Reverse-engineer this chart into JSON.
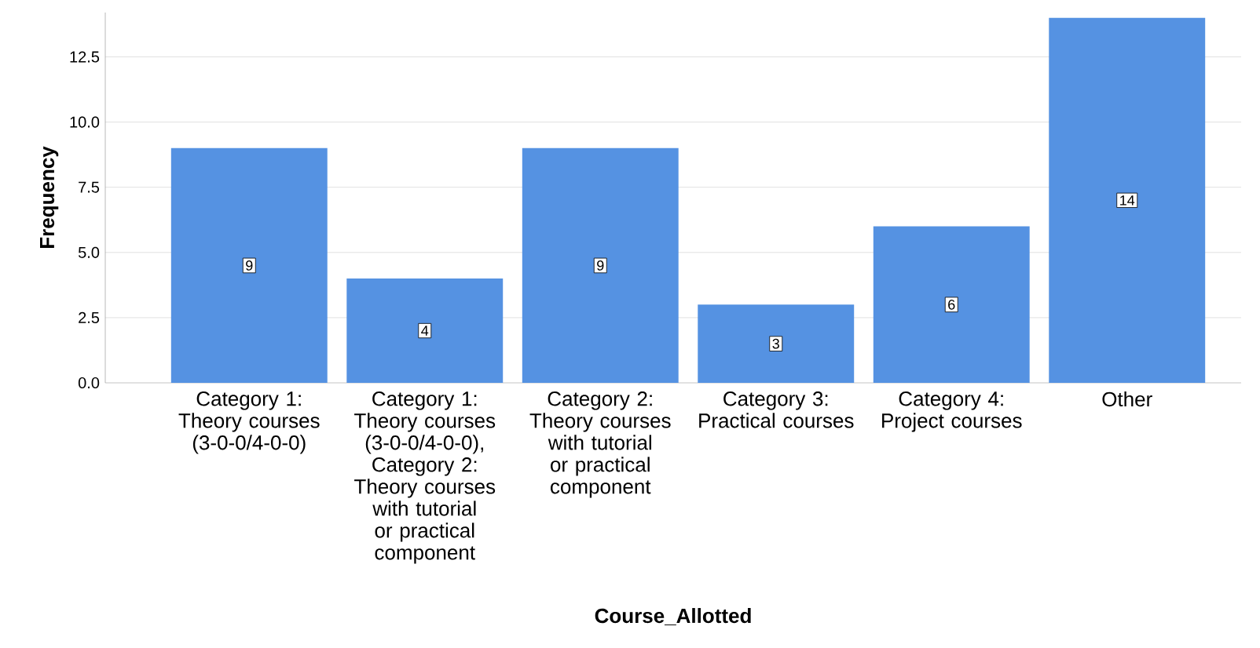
{
  "chart_data": {
    "type": "bar",
    "xlabel": "Course_Allotted",
    "ylabel": "Frequency",
    "categories": [
      "Category 1: Theory courses (3-0-0/4-0-0)",
      "Category 1: Theory courses (3-0-0/4-0-0), Category 2: Theory courses with tutorial or practical component",
      "Category 2: Theory courses with tutorial or practical component",
      "Category 3: Practical courses",
      "Category 4: Project courses",
      "Other"
    ],
    "values": [
      9,
      4,
      9,
      3,
      6,
      14
    ],
    "color": "#5592e2",
    "ylim": [
      0,
      14.2
    ],
    "yticks": [
      {
        "value": 0,
        "label": "0.0"
      },
      {
        "value": 2.5,
        "label": "2.5"
      },
      {
        "value": 5,
        "label": "5.0"
      },
      {
        "value": 7.5,
        "label": "7.5"
      },
      {
        "value": 10,
        "label": "10.0"
      },
      {
        "value": 12.5,
        "label": "12.5"
      }
    ],
    "grid": "y",
    "data_labels": true
  }
}
